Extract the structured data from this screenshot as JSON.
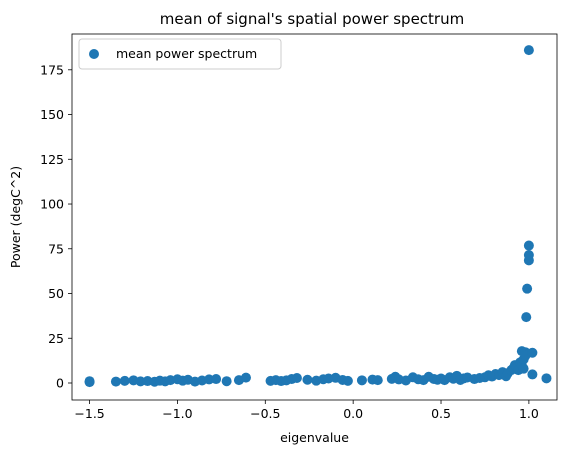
{
  "chart_data": {
    "type": "scatter",
    "title": "mean of signal's spatial power spectrum",
    "xlabel": "eigenvalue",
    "ylabel": "Power (degC^2)",
    "xlim": [
      -1.6,
      1.16
    ],
    "ylim": [
      -9.5,
      195
    ],
    "xticks": [
      -1.5,
      -1.0,
      -0.5,
      0.0,
      0.5,
      1.0
    ],
    "xtick_labels": [
      "−1.5",
      "−1.0",
      "−0.5",
      "0.0",
      "0.5",
      "1.0"
    ],
    "yticks": [
      0,
      25,
      50,
      75,
      100,
      125,
      150,
      175
    ],
    "ytick_labels": [
      "0",
      "25",
      "50",
      "75",
      "100",
      "125",
      "150",
      "175"
    ],
    "grid": false,
    "legend_position": "upper-left",
    "color": "#1f77b4",
    "series": [
      {
        "name": "mean power spectrum",
        "points": [
          [
            -1.5,
            0.5
          ],
          [
            -1.5,
            1.0
          ],
          [
            -1.35,
            0.8
          ],
          [
            -1.3,
            1.2
          ],
          [
            -1.25,
            1.5
          ],
          [
            -1.21,
            0.9
          ],
          [
            -1.17,
            1.1
          ],
          [
            -1.13,
            0.7
          ],
          [
            -1.1,
            1.3
          ],
          [
            -1.07,
            0.9
          ],
          [
            -1.04,
            1.6
          ],
          [
            -1.0,
            2.1
          ],
          [
            -0.97,
            1.3
          ],
          [
            -0.94,
            1.8
          ],
          [
            -0.9,
            0.8
          ],
          [
            -0.86,
            1.4
          ],
          [
            -0.82,
            2.0
          ],
          [
            -0.78,
            2.2
          ],
          [
            -0.72,
            1.0
          ],
          [
            -0.65,
            1.6
          ],
          [
            -0.61,
            3.0
          ],
          [
            -0.47,
            1.2
          ],
          [
            -0.44,
            1.6
          ],
          [
            -0.41,
            1.1
          ],
          [
            -0.38,
            1.5
          ],
          [
            -0.35,
            2.2
          ],
          [
            -0.32,
            2.8
          ],
          [
            -0.26,
            1.8
          ],
          [
            -0.21,
            1.3
          ],
          [
            -0.17,
            2.1
          ],
          [
            -0.14,
            2.5
          ],
          [
            -0.1,
            2.9
          ],
          [
            -0.06,
            1.7
          ],
          [
            -0.03,
            1.2
          ],
          [
            0.05,
            1.5
          ],
          [
            0.11,
            1.9
          ],
          [
            0.14,
            1.6
          ],
          [
            0.22,
            2.3
          ],
          [
            0.24,
            3.5
          ],
          [
            0.26,
            2.0
          ],
          [
            0.3,
            1.4
          ],
          [
            0.34,
            3.2
          ],
          [
            0.37,
            2.1
          ],
          [
            0.4,
            1.6
          ],
          [
            0.43,
            3.5
          ],
          [
            0.46,
            2.2
          ],
          [
            0.48,
            1.8
          ],
          [
            0.5,
            2.5
          ],
          [
            0.52,
            1.6
          ],
          [
            0.55,
            3.2
          ],
          [
            0.57,
            2.4
          ],
          [
            0.59,
            4.0
          ],
          [
            0.61,
            1.7
          ],
          [
            0.63,
            2.6
          ],
          [
            0.65,
            3.1
          ],
          [
            0.69,
            2.2
          ],
          [
            0.72,
            2.8
          ],
          [
            0.75,
            3.2
          ],
          [
            0.77,
            4.3
          ],
          [
            0.79,
            3.6
          ],
          [
            0.81,
            5.0
          ],
          [
            0.83,
            4.4
          ],
          [
            0.85,
            6.1
          ],
          [
            0.87,
            3.8
          ],
          [
            0.88,
            5.5
          ],
          [
            0.9,
            7.2
          ],
          [
            0.91,
            8.1
          ],
          [
            0.92,
            10.0
          ],
          [
            0.93,
            8.9
          ],
          [
            0.94,
            7.2
          ],
          [
            0.95,
            11.5
          ],
          [
            0.96,
            9.8
          ],
          [
            0.96,
            17.8
          ],
          [
            0.97,
            13.2
          ],
          [
            0.97,
            8.0
          ],
          [
            0.98,
            17.2
          ],
          [
            0.98,
            15.2
          ],
          [
            0.985,
            36.8
          ],
          [
            0.99,
            52.7
          ],
          [
            1.0,
            68.5
          ],
          [
            1.0,
            71.5
          ],
          [
            1.0,
            76.8
          ],
          [
            1.0,
            186.0
          ],
          [
            1.02,
            16.9
          ],
          [
            1.02,
            4.8
          ],
          [
            1.1,
            2.6
          ]
        ]
      }
    ]
  }
}
